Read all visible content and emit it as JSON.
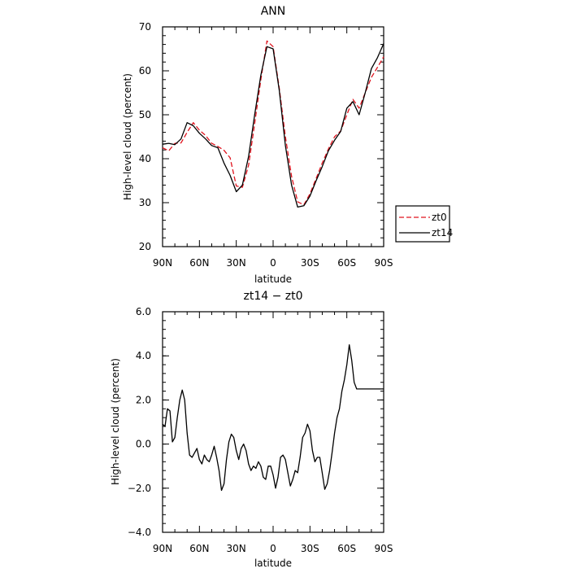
{
  "chart_data": [
    {
      "type": "line",
      "title": "ANN",
      "xlabel": "latitude",
      "ylabel": "High-level cloud (percent)",
      "xlim": [
        90,
        -90
      ],
      "ylim": [
        20,
        70
      ],
      "x_ticks": [
        90,
        60,
        30,
        0,
        -30,
        -60,
        -90
      ],
      "x_tick_labels": [
        "90N",
        "60N",
        "30N",
        "0",
        "30S",
        "60S",
        "90S"
      ],
      "y_ticks": [
        20,
        30,
        40,
        50,
        60,
        70
      ],
      "y_tick_labels": [
        "20",
        "30",
        "40",
        "50",
        "60",
        "70"
      ],
      "legend_position": "outside-right",
      "series": [
        {
          "name": "zt0",
          "color": "#e0141e",
          "dash": "dashed",
          "x": [
            90,
            85,
            80,
            75,
            70,
            65,
            60,
            55,
            50,
            45,
            40,
            35,
            30,
            25,
            20,
            15,
            10,
            5,
            0,
            -5,
            -10,
            -15,
            -20,
            -25,
            -30,
            -35,
            -40,
            -45,
            -50,
            -55,
            -60,
            -65,
            -70,
            -75,
            -80,
            -85,
            -90
          ],
          "values": [
            42.5,
            41.8,
            43.5,
            43.6,
            46,
            48.2,
            46.5,
            45.3,
            43.5,
            42.8,
            41.9,
            40.2,
            33.8,
            33.5,
            38.5,
            48,
            58,
            66.8,
            65.5,
            56,
            45,
            36,
            30.2,
            29.5,
            32,
            35.5,
            39,
            42.2,
            45,
            46.3,
            50,
            53.5,
            51.5,
            55,
            58.5,
            60.8,
            63.2
          ]
        },
        {
          "name": "zt14",
          "color": "#000000",
          "dash": "solid",
          "x": [
            90,
            85,
            80,
            75,
            70,
            65,
            60,
            55,
            50,
            45,
            40,
            35,
            30,
            25,
            20,
            15,
            10,
            5,
            0,
            -5,
            -10,
            -15,
            -20,
            -25,
            -30,
            -35,
            -40,
            -45,
            -50,
            -55,
            -60,
            -65,
            -70,
            -75,
            -80,
            -85,
            -90
          ],
          "values": [
            43.3,
            43.5,
            43.2,
            44.5,
            48.2,
            47.5,
            45.8,
            44.5,
            43,
            42.5,
            39,
            36.2,
            32.5,
            34,
            40.5,
            50,
            59,
            65.5,
            65,
            55.5,
            43,
            34,
            29,
            29.3,
            31.5,
            35,
            38.2,
            41.8,
            44.2,
            46.2,
            51.5,
            53,
            50,
            55,
            60.5,
            63,
            66.2
          ]
        }
      ]
    },
    {
      "type": "line",
      "title": "zt14 − zt0",
      "xlabel": "latitude",
      "ylabel": "High-level cloud (percent)",
      "xlim": [
        90,
        -90
      ],
      "ylim": [
        -4,
        6
      ],
      "x_ticks": [
        90,
        60,
        30,
        0,
        -30,
        -60,
        -90
      ],
      "x_tick_labels": [
        "90N",
        "60N",
        "30N",
        "0",
        "30S",
        "60S",
        "90S"
      ],
      "y_ticks": [
        -4,
        -2,
        0,
        2,
        4,
        6
      ],
      "y_tick_labels": [
        "−4.0",
        "−2.0",
        "0.0",
        "2.0",
        "4.0",
        "6.0"
      ],
      "series": [
        {
          "color": "#000000",
          "dash": "solid",
          "x": [
            90,
            88,
            86,
            84,
            82,
            80,
            78,
            76,
            74,
            72,
            70,
            68,
            66,
            64,
            62,
            60,
            58,
            56,
            54,
            52,
            50,
            48,
            46,
            44,
            42,
            40,
            38,
            36,
            34,
            32,
            30,
            28,
            26,
            24,
            22,
            20,
            18,
            16,
            14,
            12,
            10,
            8,
            6,
            4,
            2,
            0,
            -2,
            -4,
            -6,
            -8,
            -10,
            -12,
            -14,
            -16,
            -18,
            -20,
            -22,
            -24,
            -26,
            -28,
            -30,
            -32,
            -34,
            -36,
            -38,
            -40,
            -42,
            -44,
            -46,
            -48,
            -50,
            -52,
            -54,
            -56,
            -58,
            -60,
            -62,
            -64,
            -66,
            -68,
            -70,
            -72,
            -74,
            -76,
            -78,
            -80,
            -82,
            -84,
            -86,
            -88,
            -90
          ],
          "values": [
            0.9,
            0.8,
            1.6,
            1.5,
            0.1,
            0.3,
            1.2,
            2.0,
            2.45,
            2.0,
            0.5,
            -0.5,
            -0.6,
            -0.4,
            -0.2,
            -0.7,
            -0.9,
            -0.5,
            -0.7,
            -0.8,
            -0.5,
            -0.1,
            -0.6,
            -1.2,
            -2.1,
            -1.8,
            -0.7,
            0.1,
            0.45,
            0.3,
            -0.3,
            -0.7,
            -0.2,
            0.0,
            -0.3,
            -0.9,
            -1.2,
            -1.0,
            -1.1,
            -0.8,
            -1.0,
            -1.5,
            -1.6,
            -1.0,
            -1.0,
            -1.4,
            -2.0,
            -1.5,
            -0.6,
            -0.5,
            -0.7,
            -1.3,
            -1.9,
            -1.6,
            -1.2,
            -1.3,
            -0.6,
            0.3,
            0.5,
            0.9,
            0.6,
            -0.3,
            -0.8,
            -0.6,
            -0.6,
            -1.3,
            -2.05,
            -1.8,
            -1.2,
            -0.4,
            0.5,
            1.2,
            1.6,
            2.4,
            2.9,
            3.6,
            4.5,
            3.8,
            2.8,
            2.5,
            2.5,
            2.5,
            2.5,
            2.5,
            2.5,
            2.5,
            2.5,
            2.5,
            2.5,
            2.5,
            2.5
          ]
        }
      ]
    }
  ]
}
